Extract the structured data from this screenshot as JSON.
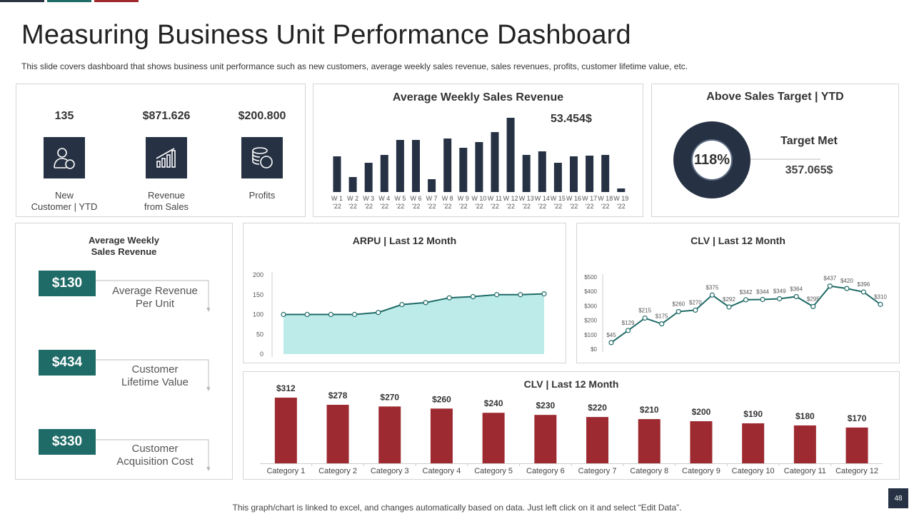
{
  "header": {
    "title": "Measuring Business Unit Performance Dashboard",
    "subtitle": "This slide covers dashboard that shows business unit performance such as new customers, average weekly sales revenue, sales revenues, profits, customer lifetime value, etc."
  },
  "kpis": [
    {
      "value": "135",
      "label_line1": "New",
      "label_line2": "Customer | YTD",
      "icon": "user-icon"
    },
    {
      "value": "$871.626",
      "label_line1": "Revenue",
      "label_line2": "from Sales",
      "icon": "bar-growth-icon"
    },
    {
      "value": "$200.800",
      "label_line1": "Profits",
      "label_line2": "",
      "icon": "coins-icon"
    }
  ],
  "weekly_panel": {
    "title": "Average Weekly Sales Revenue",
    "highlight": "53.454$"
  },
  "target_panel": {
    "title": "Above Sales Target | YTD",
    "percent": "118%",
    "percent_value": 118,
    "label": "Target Met",
    "value": "357.065$"
  },
  "metrics_panel": {
    "title_line1": "Average Weekly",
    "title_line2": "Sales Revenue",
    "items": [
      {
        "badge": "$130",
        "line1": "Average Revenue",
        "line2": "Per Unit"
      },
      {
        "badge": "$434",
        "line1": "Customer",
        "line2": "Lifetime Value"
      },
      {
        "badge": "$330",
        "line1": "Customer",
        "line2": "Acquisition Cost"
      }
    ]
  },
  "arpu_panel": {
    "title": "ARPU | Last 12 Month"
  },
  "clv_line_panel": {
    "title": "CLV | Last 12 Month"
  },
  "clv_bar_panel": {
    "title": "CLV | Last 12 Month"
  },
  "colors": {
    "navy": "#263244",
    "teal": "#1f6b67",
    "maroon": "#9e2a31",
    "area": "#bdebea",
    "line": "#1f6b67"
  },
  "footer": {
    "text": "This graph/chart is linked to excel, and changes automatically based on data. Just left click on it and select “Edit Data”.",
    "page": "48"
  },
  "chart_data": [
    {
      "type": "bar",
      "title": "Average Weekly Sales Revenue",
      "categories": [
        "W 1 '22",
        "W 2 '22",
        "W 3 '22",
        "W 4 '22",
        "W 5 '22",
        "W 6 '22",
        "W 7 '22",
        "W 8 '22",
        "W 9 '22",
        "W 10 '22",
        "W 11 '22",
        "W 12 '22",
        "W 13 '22",
        "W 14 '22",
        "W 15 '22",
        "W 16 '22",
        "W 17 '22",
        "W 18 '22",
        "W 19 '22"
      ],
      "tick_top": [
        "W 1",
        "W 2",
        "W 3",
        "W 4",
        "W 5",
        "W 6",
        "W 7",
        "W 8",
        "W 9",
        "W 10",
        "W 11",
        "W 12",
        "W 13",
        "W 14",
        "W 15",
        "W 16",
        "W 17",
        "W 18",
        "W 19"
      ],
      "tick_bottom": "'22",
      "values": [
        50,
        21,
        41,
        52,
        73,
        73,
        18,
        75,
        62,
        70,
        84,
        104,
        52,
        57,
        41,
        50,
        51,
        52,
        5
      ],
      "ylim": [
        0,
        110
      ]
    },
    {
      "type": "area",
      "title": "ARPU | Last 12 Month",
      "x": [
        1,
        2,
        3,
        4,
        5,
        6,
        7,
        8,
        9,
        10,
        11,
        12
      ],
      "values": [
        100,
        100,
        100,
        100,
        105,
        125,
        130,
        142,
        145,
        150,
        150,
        152
      ],
      "yticks": [
        0,
        50,
        100,
        150,
        200
      ],
      "ylim": [
        0,
        200
      ]
    },
    {
      "type": "line",
      "title": "CLV | Last 12 Month",
      "values": [
        45,
        129,
        215,
        175,
        260,
        270,
        375,
        292,
        342,
        344,
        349,
        364,
        295,
        437,
        420,
        396,
        310
      ],
      "labels": [
        "$45",
        "$129",
        "$215",
        "$175",
        "$260",
        "$270",
        "$375",
        "$292",
        "$342",
        "$344",
        "$349",
        "$364",
        "$295",
        "$437",
        "$420",
        "$396",
        "$310"
      ],
      "yticks": [
        "$0",
        "$100",
        "$200",
        "$300",
        "$400",
        "$500"
      ],
      "ylim": [
        0,
        500
      ]
    },
    {
      "type": "bar",
      "title": "CLV | Last 12 Month",
      "categories": [
        "Category 1",
        "Category 2",
        "Category 3",
        "Category 4",
        "Category 5",
        "Category 6",
        "Category 7",
        "Category 8",
        "Category 9",
        "Category 10",
        "Category 11",
        "Category 12"
      ],
      "values": [
        312,
        278,
        270,
        260,
        240,
        230,
        220,
        210,
        200,
        190,
        180,
        170
      ],
      "labels": [
        "$312",
        "$278",
        "$270",
        "$260",
        "$240",
        "$230",
        "$220",
        "$210",
        "$200",
        "$190",
        "$180",
        "$170"
      ],
      "ylim": [
        0,
        312
      ]
    }
  ]
}
